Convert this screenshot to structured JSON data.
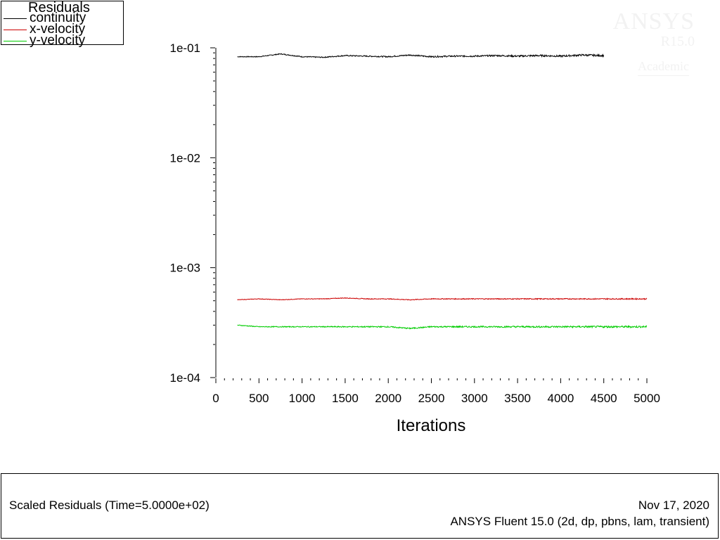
{
  "chart_data": {
    "type": "line",
    "title": "",
    "xlabel": "Iterations",
    "ylabel": "",
    "yscale": "log",
    "xlim": [
      0,
      5000
    ],
    "ylim": [
      0.0001,
      0.1
    ],
    "xticks": [
      "0",
      "500",
      "1000",
      "1500",
      "2000",
      "2500",
      "3000",
      "3500",
      "4000",
      "4500",
      "5000"
    ],
    "yticks": [
      "1e-04",
      "1e-03",
      "1e-02",
      "1e-01"
    ],
    "grid": false,
    "legend_position": "top-left",
    "series": [
      {
        "name": "continuity",
        "color": "#000000",
        "x": [
          250,
          500,
          750,
          1000,
          1250,
          1500,
          1750,
          2000,
          2250,
          2500,
          2750,
          3000,
          3250,
          3500,
          3750,
          4000,
          4250,
          4500
        ],
        "y": [
          0.083,
          0.083,
          0.088,
          0.083,
          0.082,
          0.085,
          0.084,
          0.083,
          0.086,
          0.083,
          0.084,
          0.084,
          0.085,
          0.084,
          0.085,
          0.084,
          0.086,
          0.085
        ],
        "noise": 0.02
      },
      {
        "name": "x-velocity",
        "color": "#cc0000",
        "x": [
          250,
          500,
          750,
          1000,
          1250,
          1500,
          1750,
          2000,
          2250,
          2500,
          2750,
          3000,
          3250,
          3500,
          3750,
          4000,
          4250,
          4500,
          4750,
          5000
        ],
        "y": [
          0.00051,
          0.00052,
          0.00051,
          0.00052,
          0.00052,
          0.00053,
          0.00052,
          0.00052,
          0.00051,
          0.00052,
          0.00052,
          0.00052,
          0.00052,
          0.00052,
          0.00052,
          0.00052,
          0.00052,
          0.00052,
          0.00052,
          0.00052
        ],
        "noise": 0.012
      },
      {
        "name": "y-velocity",
        "color": "#00cc00",
        "x": [
          250,
          500,
          750,
          1000,
          1250,
          1500,
          1750,
          2000,
          2250,
          2500,
          2750,
          3000,
          3250,
          3500,
          3750,
          4000,
          4250,
          4500,
          4750,
          5000
        ],
        "y": [
          0.0003,
          0.00029,
          0.00029,
          0.00029,
          0.00029,
          0.00029,
          0.00029,
          0.00029,
          0.00028,
          0.00029,
          0.00029,
          0.00029,
          0.00029,
          0.00029,
          0.00029,
          0.00029,
          0.00029,
          0.00029,
          0.00029,
          0.00029
        ],
        "noise": 0.02
      }
    ]
  },
  "legend": {
    "title": "Residuals",
    "items": [
      "continuity",
      "x-velocity",
      "y-velocity"
    ]
  },
  "watermark": {
    "brand": "ANSYS",
    "version": "R15.0",
    "license": "Academic"
  },
  "footer": {
    "plot_title": "Scaled Residuals  (Time=5.0000e+02)",
    "date": "Nov 17, 2020",
    "version": "ANSYS Fluent 15.0 (2d, dp, pbns, lam, transient)"
  }
}
